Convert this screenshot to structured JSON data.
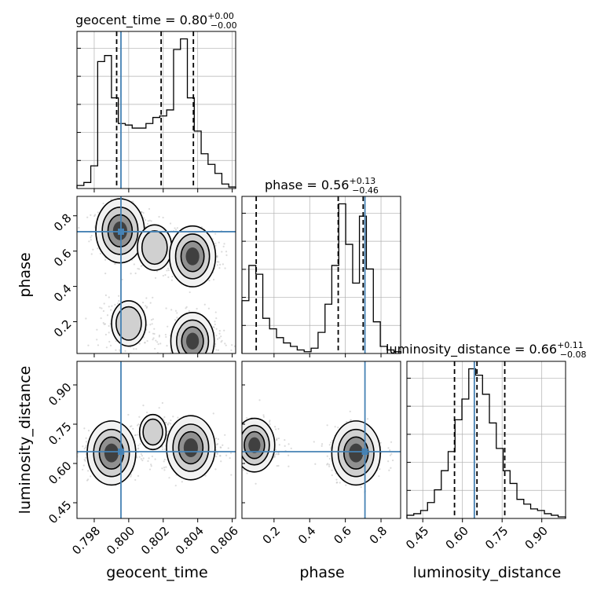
{
  "colors": {
    "truth": "#4682b4",
    "hist": "#000000",
    "grid": "#b0b0b0",
    "scatter": "#bdbdbd"
  },
  "chart_data": {
    "type": "corner",
    "parameters": [
      "geocent_time",
      "phase",
      "luminosity_distance"
    ],
    "truths": {
      "geocent_time": 0.79955,
      "phase": 0.71,
      "luminosity_distance": 0.645
    },
    "titles": [
      {
        "param": "geocent_time",
        "text": "geocent_time = 0.80",
        "upper": "+0.00",
        "lower": "−0.00"
      },
      {
        "param": "phase",
        "text": "phase = 0.56",
        "upper": "+0.13",
        "lower": "−0.46"
      },
      {
        "param": "luminosity_distance",
        "text": "luminosity_distance = 0.66",
        "upper": "+0.11",
        "lower": "−0.08"
      }
    ],
    "axis_labels": {
      "x": [
        "geocent_time",
        "phase",
        "luminosity_distance"
      ],
      "y": [
        "phase",
        "luminosity_distance"
      ]
    },
    "ranges": {
      "geocent_time": [
        0.797,
        0.8062
      ],
      "phase": [
        0.02,
        0.91
      ],
      "luminosity_distance": [
        0.39,
        0.99
      ]
    },
    "ticks": {
      "geocent_time": [
        "0.798",
        "0.800",
        "0.802",
        "0.804",
        "0.806"
      ],
      "phase": [
        "0.2",
        "0.4",
        "0.6",
        "0.8"
      ],
      "luminosity_distance": [
        "0.45",
        "0.60",
        "0.75",
        "0.90"
      ]
    },
    "quantiles": {
      "geocent_time": [
        0.7993,
        0.80188,
        0.80375
      ],
      "phase": [
        0.1,
        0.56,
        0.7
      ],
      "luminosity_distance": [
        0.57,
        0.655,
        0.76
      ]
    },
    "histograms": {
      "geocent_time": {
        "edges": [
          0.797,
          0.7974,
          0.7978,
          0.7982,
          0.7986,
          0.799,
          0.7994,
          0.7998,
          0.8002,
          0.8006,
          0.801,
          0.8014,
          0.8018,
          0.8022,
          0.8026,
          0.803,
          0.8034,
          0.8038,
          0.8042,
          0.8046,
          0.805,
          0.8054,
          0.8058,
          0.8062
        ],
        "counts": [
          2,
          4,
          15,
          84,
          88,
          60,
          43,
          42,
          40,
          40,
          43,
          47,
          48,
          52,
          92,
          99,
          60,
          38,
          23,
          16,
          10,
          3,
          1
        ]
      },
      "phase": {
        "edges": [
          0.02,
          0.059,
          0.098,
          0.137,
          0.175,
          0.214,
          0.253,
          0.292,
          0.33,
          0.369,
          0.408,
          0.447,
          0.486,
          0.524,
          0.563,
          0.602,
          0.641,
          0.679,
          0.718,
          0.757,
          0.796,
          0.834,
          0.873,
          0.912
        ],
        "counts": [
          30,
          50,
          45,
          20,
          14,
          9,
          6,
          4,
          2,
          1,
          3,
          12,
          28,
          50,
          85,
          62,
          40,
          78,
          48,
          18,
          4,
          2,
          1
        ]
      },
      "luminosity_distance": {
        "edges": [
          0.39,
          0.416,
          0.442,
          0.468,
          0.494,
          0.52,
          0.546,
          0.572,
          0.598,
          0.624,
          0.65,
          0.676,
          0.702,
          0.728,
          0.754,
          0.78,
          0.806,
          0.832,
          0.858,
          0.884,
          0.91,
          0.936,
          0.962,
          0.99
        ],
        "counts": [
          2,
          3,
          5,
          10,
          18,
          30,
          42,
          62,
          75,
          94,
          90,
          78,
          60,
          44,
          30,
          22,
          12,
          9,
          6,
          5,
          3,
          2,
          1
        ]
      }
    },
    "density_clusters": {
      "geocent_time_vs_phase": [
        {
          "x": 0.7995,
          "y": 0.715,
          "weight": 1.0
        },
        {
          "x": 0.8015,
          "y": 0.62,
          "weight": 0.5
        },
        {
          "x": 0.8037,
          "y": 0.57,
          "weight": 0.9
        },
        {
          "x": 0.8,
          "y": 0.19,
          "weight": 0.5
        },
        {
          "x": 0.8037,
          "y": 0.09,
          "weight": 0.8
        }
      ],
      "geocent_time_vs_luminosity_distance": [
        {
          "x": 0.799,
          "y": 0.64,
          "weight": 1.0
        },
        {
          "x": 0.8036,
          "y": 0.66,
          "weight": 1.0
        },
        {
          "x": 0.8014,
          "y": 0.72,
          "weight": 0.3
        }
      ],
      "phase_vs_luminosity_distance": [
        {
          "x": 0.09,
          "y": 0.67,
          "weight": 0.7
        },
        {
          "x": 0.66,
          "y": 0.64,
          "weight": 1.0
        }
      ]
    }
  }
}
